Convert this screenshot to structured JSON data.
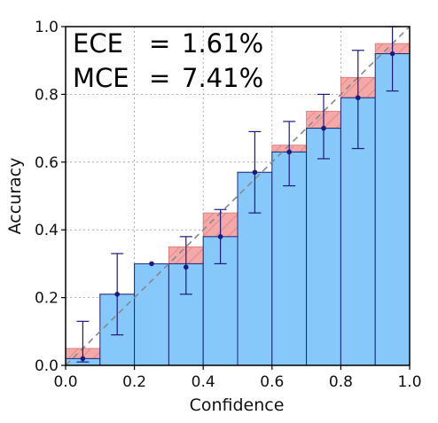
{
  "chart_data": {
    "type": "bar",
    "xlabel": "Confidence",
    "ylabel": "Accuracy",
    "xlim": [
      0.0,
      1.0
    ],
    "ylim": [
      0.0,
      1.0
    ],
    "grid": true,
    "x_ticks": [
      "0.0",
      "0.2",
      "0.4",
      "0.6",
      "0.8",
      "1.0"
    ],
    "y_ticks": [
      "0.0",
      "0.2",
      "0.4",
      "0.6",
      "0.8",
      "1.0"
    ],
    "annotations": [
      {
        "label": "ECE",
        "eq": "=",
        "value": "1.61%"
      },
      {
        "label": "MCE",
        "eq": "=",
        "value": "7.41%"
      }
    ],
    "bin_edges": [
      0.0,
      0.1,
      0.2,
      0.3,
      0.4,
      0.5,
      0.6,
      0.7,
      0.8,
      0.9,
      1.0
    ],
    "accuracy": [
      0.02,
      0.21,
      0.3,
      0.3,
      0.38,
      0.57,
      0.63,
      0.7,
      0.79,
      0.92
    ],
    "point": [
      0.02,
      0.21,
      0.3,
      0.29,
      0.38,
      0.57,
      0.63,
      0.7,
      0.79,
      0.92
    ],
    "err_low": [
      0.01,
      0.09,
      0.3,
      0.21,
      0.3,
      0.45,
      0.53,
      0.61,
      0.64,
      0.81
    ],
    "err_high": [
      0.13,
      0.33,
      0.3,
      0.38,
      0.46,
      0.69,
      0.72,
      0.8,
      0.93,
      1.0
    ],
    "colors": {
      "bar_fill": "#87c8fa",
      "bar_edge": "#1a237e",
      "gap_fill": "#f4a9a8",
      "gap_hatch": "#d9726f",
      "diagonal": "#888888",
      "errorbar": "#1a1a80"
    }
  }
}
